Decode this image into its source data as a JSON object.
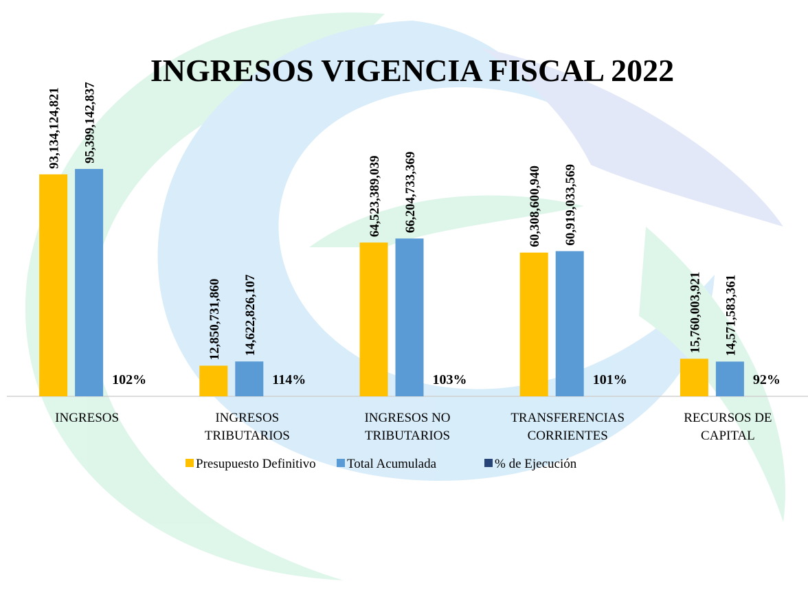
{
  "chart_data": {
    "type": "bar",
    "title": "INGRESOS VIGENCIA FISCAL 2022",
    "categories": [
      [
        "INGRESOS"
      ],
      [
        "INGRESOS",
        "TRIBUTARIOS"
      ],
      [
        "INGRESOS NO",
        "TRIBUTARIOS"
      ],
      [
        "TRANSFERENCIAS",
        "CORRIENTES"
      ],
      [
        "RECURSOS DE",
        "CAPITAL"
      ]
    ],
    "series": [
      {
        "name": "Presupuesto Definitivo",
        "color": "#ffc000",
        "values": [
          93134124821,
          12850731860,
          64523389039,
          60308600940,
          15760003921
        ],
        "value_labels": [
          "93,134,124,821",
          "12,850,731,860",
          "64,523,389,039",
          "60,308,600,940",
          "15,760,003,921"
        ]
      },
      {
        "name": "Total Acumulada",
        "color": "#5b9bd5",
        "values": [
          95399142837,
          14622826107,
          66204733369,
          60919033569,
          14571583361
        ],
        "value_labels": [
          "95,399,142,837",
          "14,622,826,107",
          "66,204,733,369",
          "60,919,033,569",
          "14,571,583,361"
        ]
      },
      {
        "name": "% de  Ejecución",
        "color": "#264478",
        "values": [
          102,
          114,
          103,
          101,
          92
        ],
        "value_labels": [
          "102%",
          "114%",
          "103%",
          "101%",
          "92%"
        ]
      }
    ],
    "ylim": [
      0,
      100000000000
    ],
    "legend": "bottom"
  }
}
